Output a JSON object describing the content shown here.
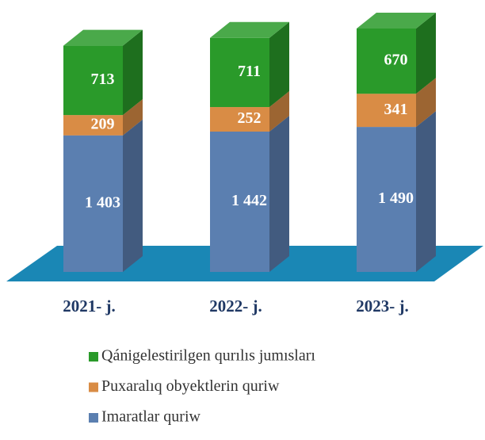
{
  "chart_data": {
    "type": "bar3d_stacked",
    "categories": [
      "2021- j.",
      "2022- j.",
      "2023- j."
    ],
    "series": [
      {
        "name": "Imaratlar quriw",
        "color": "#5b7fb0",
        "values": [
          1403,
          1442,
          1490
        ],
        "value_labels": [
          "1 403",
          "1 442",
          "1 490"
        ]
      },
      {
        "name": "Puxaralıq obyektlerin quriw",
        "color": "#d98c45",
        "values": [
          209,
          252,
          341
        ]
      },
      {
        "name": "Qánigelestirilgen qurılıs jumısları",
        "color": "#2a9a2a",
        "values": [
          713,
          711,
          670
        ]
      }
    ]
  }
}
